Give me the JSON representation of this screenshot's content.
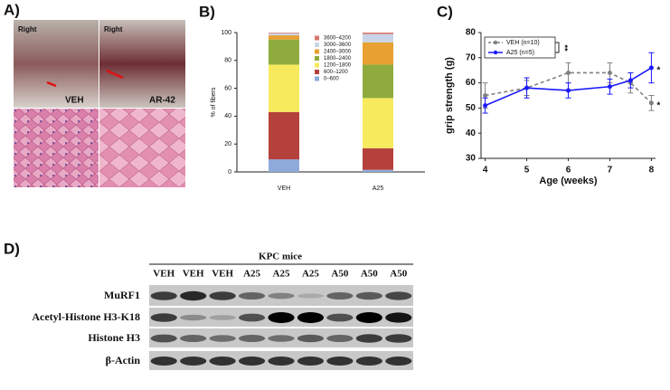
{
  "panel_labels": [
    "A)",
    "B)",
    "C)",
    "D)"
  ],
  "panel_a": {
    "photo_labels": [
      "Right",
      "Right"
    ],
    "group_labels": [
      "VEH",
      "AR-42"
    ]
  },
  "chart_data": [
    {
      "type": "stacked_bar",
      "ylabel": "% of fibers",
      "categories": [
        "VEH",
        "A25"
      ],
      "ylim": [
        0,
        100
      ],
      "yticks": [
        0,
        20,
        40,
        60,
        80,
        100
      ],
      "series": [
        {
          "name": "0–600",
          "color": "#8eaadb",
          "values": [
            9,
            1.5
          ]
        },
        {
          "name": "600–1200",
          "color": "#b5413c",
          "values": [
            34,
            15.5
          ]
        },
        {
          "name": "1200–1800",
          "color": "#f7ea5c",
          "values": [
            34,
            36
          ]
        },
        {
          "name": "1800–2400",
          "color": "#8fab3e",
          "values": [
            18,
            24
          ]
        },
        {
          "name": "2400–3000",
          "color": "#e8a030",
          "values": [
            3,
            16
          ]
        },
        {
          "name": "3000–3600",
          "color": "#c9d4e6",
          "values": [
            1.5,
            6
          ]
        },
        {
          "name": "3600–4200",
          "color": "#d9776c",
          "values": [
            0.5,
            1
          ]
        }
      ]
    },
    {
      "type": "line",
      "xlabel": "Age (weeks)",
      "ylabel": "grip strength (g)",
      "x": [
        4,
        5,
        6,
        7,
        7.5,
        8
      ],
      "xlim": [
        3.9,
        8.1
      ],
      "xticks": [
        4,
        5,
        6,
        7,
        8
      ],
      "ylim": [
        30,
        80
      ],
      "yticks": [
        30,
        40,
        50,
        60,
        70,
        80
      ],
      "series": [
        {
          "name": "VEH (n=10)",
          "color": "#808080",
          "dashed": true,
          "values": [
            55,
            58,
            64,
            64,
            60,
            52
          ],
          "errors": [
            5,
            3,
            4,
            4,
            4,
            3
          ]
        },
        {
          "name": "A25 (n=5)",
          "color": "#1a1aff",
          "dashed": false,
          "values": [
            51,
            58,
            57,
            58.5,
            61,
            66
          ],
          "errors": [
            3,
            4,
            3,
            3,
            3,
            6
          ]
        }
      ],
      "annotations": [
        "*",
        "*",
        "**"
      ]
    }
  ],
  "panel_d": {
    "title": "KPC mice",
    "lanes": [
      "VEH",
      "VEH",
      "VEH",
      "A25",
      "A25",
      "A25",
      "A50",
      "A50",
      "A50"
    ],
    "rows": [
      "MuRF1",
      "Acetyl-Histone H3-K18",
      "Histone H3",
      "β-Actin"
    ]
  }
}
